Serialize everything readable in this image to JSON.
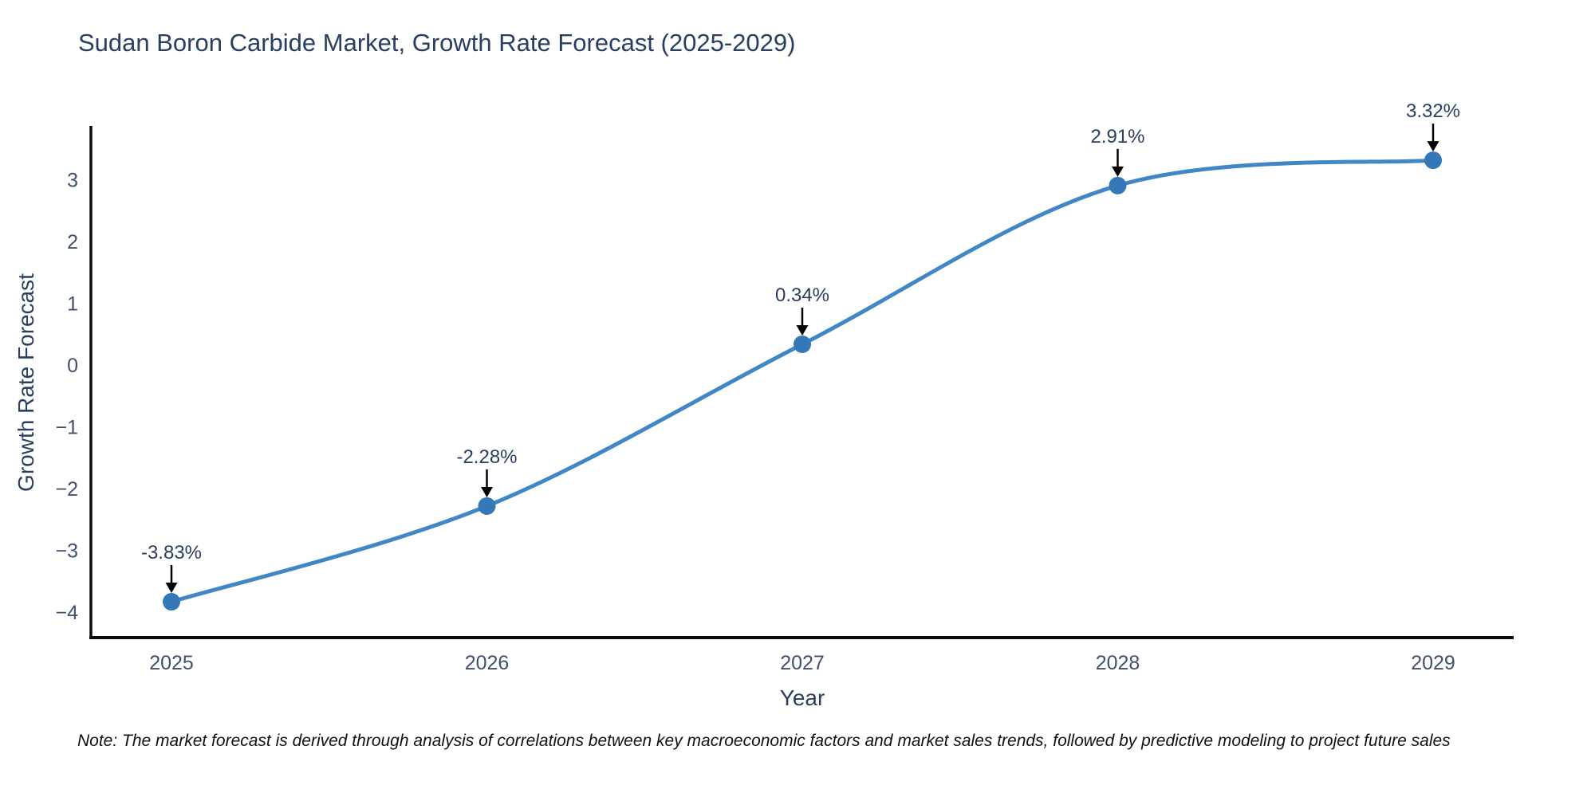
{
  "chart_data": {
    "type": "line",
    "title": "Sudan Boron Carbide Market, Growth Rate Forecast (2025-2029)",
    "xlabel": "Year",
    "ylabel": "Growth Rate Forecast",
    "categories": [
      "2025",
      "2026",
      "2027",
      "2028",
      "2029"
    ],
    "series": [
      {
        "name": "Growth Rate Forecast",
        "values": [
          -3.83,
          -2.28,
          0.34,
          2.91,
          3.32
        ],
        "point_labels": [
          "-3.83%",
          "-2.28%",
          "0.34%",
          "2.91%",
          "3.32%"
        ]
      }
    ],
    "yticks": [
      3,
      2,
      1,
      0,
      -1,
      -2,
      -3,
      -4
    ],
    "ylim": [
      -4.41,
      3.85
    ],
    "grid": false,
    "legend_position": "none",
    "line_shape": "spline",
    "annotations": "arrow-down-to-point",
    "colors": {
      "line": "#4186c5",
      "marker": "#3578b8",
      "arrow": "#000000",
      "axis_line": "#0d0d0d",
      "tick_text": "#42506b",
      "annotation_text": "#2a3f5f",
      "title_text": "#2a3f5f"
    }
  },
  "note": "Note: The market forecast is derived through analysis of correlations between key macroeconomic factors and market sales trends, followed by predictive modeling to project future sales"
}
